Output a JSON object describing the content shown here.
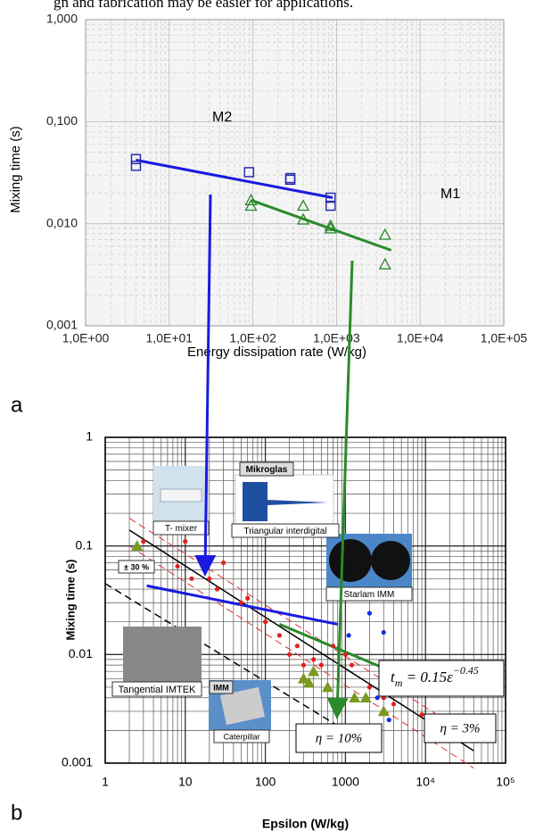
{
  "text_above": "gn and fabrication may be easier for applications.",
  "chart_data": [
    {
      "type": "scatter",
      "panel": "a",
      "xlabel": "Energy dissipation rate (W/kg)",
      "ylabel": "Mixing time (s)",
      "log_x": true,
      "log_y": true,
      "grid": true,
      "xlim": [
        1,
        100000
      ],
      "xticks": [
        {
          "value": 1,
          "label": "1,0E+00"
        },
        {
          "value": 10,
          "label": "1,0E+01"
        },
        {
          "value": 100,
          "label": "1,0E+02"
        },
        {
          "value": 1000,
          "label": "1,0E+03"
        },
        {
          "value": 10000,
          "label": "1,0E+04"
        },
        {
          "value": 100000,
          "label": "1,0E+05"
        }
      ],
      "ylim": [
        0.001,
        1
      ],
      "yticks": [
        {
          "value": 0.001,
          "label": "0,001"
        },
        {
          "value": 0.01,
          "label": "0,010"
        },
        {
          "value": 0.1,
          "label": "0,100"
        },
        {
          "value": 1,
          "label": "1,000"
        }
      ],
      "series": [
        {
          "name": "M2",
          "color": "#2b2bb0",
          "marker": "square",
          "x": [
            4,
            4,
            90,
            280,
            280,
            850,
            850
          ],
          "values": [
            0.043,
            0.037,
            0.032,
            0.028,
            0.027,
            0.018,
            0.015
          ]
        },
        {
          "name": "M1",
          "color": "#2a8a2a",
          "marker": "triangle",
          "x": [
            95,
            95,
            400,
            400,
            850,
            850,
            3800,
            3800
          ],
          "values": [
            0.017,
            0.015,
            0.015,
            0.011,
            0.0095,
            0.009,
            0.0078,
            0.004
          ]
        }
      ],
      "lines": [
        {
          "color": "#1a1adf",
          "width": 3,
          "x": [
            4,
            900
          ],
          "values": [
            0.042,
            0.018
          ]
        },
        {
          "color": "#2a8a2a",
          "width": 3,
          "x": [
            95,
            4500
          ],
          "values": [
            0.017,
            0.0055
          ]
        }
      ]
    },
    {
      "type": "scatter",
      "panel": "b",
      "xlabel": "Epsilon (W/kg)",
      "ylabel": "Mixing time (s)",
      "log_x": true,
      "log_y": true,
      "grid": true,
      "xlim": [
        1,
        100000
      ],
      "xticks": [
        1,
        10,
        100,
        1000,
        {
          "value": 10000,
          "label": "10⁴"
        },
        {
          "value": 100000,
          "label": "10⁵"
        }
      ],
      "ylim": [
        0.001,
        1
      ],
      "yticks": [
        0.001,
        0.01,
        0.1,
        1
      ],
      "series": [
        {
          "color": "#e02020",
          "marker": "dot",
          "x": [
            3,
            3.5,
            8,
            10,
            12,
            20,
            25,
            30,
            50,
            60,
            100,
            150,
            200,
            250,
            300,
            400,
            500,
            700,
            1000,
            1200,
            2000,
            3000,
            4000,
            9000
          ],
          "values": [
            0.11,
            0.062,
            0.065,
            0.11,
            0.05,
            0.05,
            0.04,
            0.07,
            0.03,
            0.033,
            0.02,
            0.015,
            0.01,
            0.012,
            0.008,
            0.009,
            0.008,
            0.012,
            0.01,
            0.008,
            0.005,
            0.004,
            0.0035,
            0.0028
          ]
        },
        {
          "color": "#1030e0",
          "marker": "dot",
          "x": [
            1100,
            2000,
            3000,
            2500,
            3500
          ],
          "values": [
            0.015,
            0.024,
            0.016,
            0.004,
            0.0025
          ]
        },
        {
          "color": "#7a9a20",
          "marker": "triangle",
          "x": [
            2.5,
            300,
            350,
            400,
            600,
            1300,
            1800,
            3000
          ],
          "values": [
            0.1,
            0.006,
            0.0055,
            0.007,
            0.005,
            0.004,
            0.004,
            0.003
          ]
        }
      ],
      "lines": [
        {
          "color": "#000000",
          "width": 1.5,
          "x": [
            2,
            40000
          ],
          "values": [
            0.14,
            0.0013
          ]
        },
        {
          "color": "#000000",
          "width": 1.5,
          "dash": true,
          "x": [
            1,
            1000
          ],
          "values": [
            0.045,
            0.002
          ]
        },
        {
          "color": "#e03030",
          "width": 1,
          "dash": true,
          "x": [
            2,
            40000
          ],
          "values": [
            0.18,
            0.0017
          ]
        },
        {
          "color": "#e03030",
          "width": 1,
          "dash": true,
          "x": [
            2,
            40000
          ],
          "values": [
            0.1,
            0.0009
          ]
        },
        {
          "color": "#1a1adf",
          "width": 3,
          "x": [
            3.3,
            800
          ],
          "values": [
            0.043,
            0.019
          ]
        },
        {
          "color": "#2a8a2a",
          "width": 3,
          "x": [
            150,
            4800
          ],
          "values": [
            0.019,
            0.0065
          ]
        }
      ],
      "annotations": {
        "t_mixer": "T- mixer",
        "mikroglas": "Mikroglas",
        "triangular": "Triangular interdigital",
        "starlam": "Starlam IMM",
        "tangential": "Tangential IMTEK",
        "imm": "IMM",
        "caterpillar": "Caterpillar",
        "band": "± 30 %",
        "eta10": "η = 10%",
        "eta3": "η = 3%"
      },
      "formula": {
        "lhs": "t",
        "sub": "m",
        "rhs": " = 0.15ε",
        "sup": "−0.45"
      }
    }
  ]
}
